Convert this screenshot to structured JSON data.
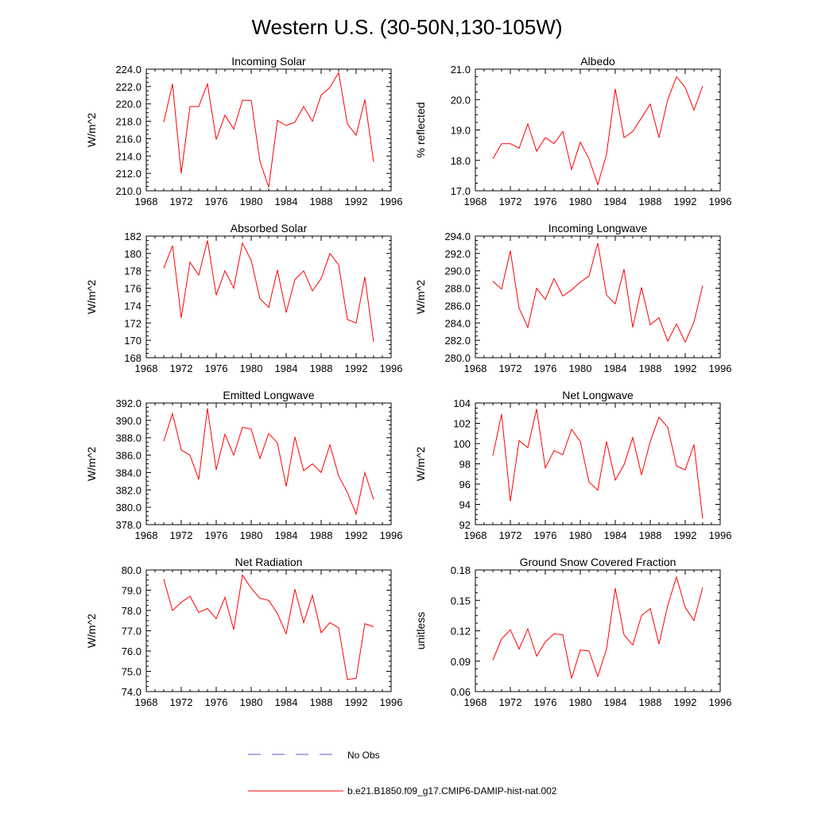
{
  "figure": {
    "title": "Western U.S. (30-50N,130-105W)"
  },
  "colors": {
    "model": "#ff0000",
    "obs": "#5a5ad0",
    "axis": "#000000",
    "background": "#ffffff"
  },
  "legend": {
    "obs_label": "No Obs",
    "model_label": "b.e21.B1850.f09_g17.CMIP6-DAMIP-hist-nat.002",
    "placement": "bottom-center"
  },
  "chart_data": [
    {
      "type": "line",
      "title": "Incoming Solar",
      "xlabel": "",
      "ylabel": "W/m^2",
      "xlim": [
        1968,
        1996
      ],
      "ylim": [
        210,
        224
      ],
      "xticks": [
        1968,
        1972,
        1976,
        1980,
        1984,
        1988,
        1992,
        1996
      ],
      "yticks": [
        "210.0",
        "212.0",
        "214.0",
        "216.0",
        "218.0",
        "220.0",
        "222.0",
        "224.0"
      ],
      "grid": false,
      "x": [
        1970,
        1971,
        1972,
        1973,
        1974,
        1975,
        1976,
        1977,
        1978,
        1979,
        1980,
        1981,
        1982,
        1983,
        1984,
        1985,
        1986,
        1987,
        1988,
        1989,
        1990,
        1991,
        1992,
        1993,
        1994
      ],
      "series": [
        {
          "values": [
            217.9,
            222.3,
            212.0,
            219.7,
            219.7,
            222.3,
            215.9,
            218.7,
            217.1,
            220.4,
            220.4,
            213.4,
            210.4,
            218.1,
            217.5,
            217.9,
            219.7,
            218.0,
            221.0,
            221.9,
            223.6,
            217.7,
            216.4,
            220.5,
            213.3
          ]
        }
      ]
    },
    {
      "type": "line",
      "title": "Albedo",
      "xlabel": "",
      "ylabel": "% reflected",
      "xlim": [
        1968,
        1996
      ],
      "ylim": [
        17,
        21
      ],
      "xticks": [
        1968,
        1972,
        1976,
        1980,
        1984,
        1988,
        1992,
        1996
      ],
      "yticks": [
        "17.0",
        "18.0",
        "19.0",
        "20.0",
        "21.0"
      ],
      "grid": false,
      "x": [
        1970,
        1971,
        1972,
        1973,
        1974,
        1975,
        1976,
        1977,
        1978,
        1979,
        1980,
        1981,
        1982,
        1983,
        1984,
        1985,
        1986,
        1987,
        1988,
        1989,
        1990,
        1991,
        1992,
        1993,
        1994
      ],
      "series": [
        {
          "values": [
            18.05,
            18.55,
            18.55,
            18.4,
            19.2,
            18.3,
            18.75,
            18.55,
            18.95,
            17.7,
            18.6,
            18.05,
            17.2,
            18.2,
            20.35,
            18.75,
            18.95,
            19.4,
            19.85,
            18.75,
            20.0,
            20.75,
            20.4,
            19.65,
            20.45
          ]
        }
      ]
    },
    {
      "type": "line",
      "title": "Absorbed Solar",
      "xlabel": "",
      "ylabel": "W/m^2",
      "xlim": [
        1968,
        1996
      ],
      "ylim": [
        168,
        182
      ],
      "xticks": [
        1968,
        1972,
        1976,
        1980,
        1984,
        1988,
        1992,
        1996
      ],
      "yticks": [
        "168",
        "170",
        "172",
        "174",
        "176",
        "178",
        "180",
        "182"
      ],
      "grid": false,
      "x": [
        1970,
        1971,
        1972,
        1973,
        1974,
        1975,
        1976,
        1977,
        1978,
        1979,
        1980,
        1981,
        1982,
        1983,
        1984,
        1985,
        1986,
        1987,
        1988,
        1989,
        1990,
        1991,
        1992,
        1993,
        1994
      ],
      "series": [
        {
          "values": [
            178.3,
            180.9,
            172.6,
            179.0,
            177.5,
            181.5,
            175.2,
            178.0,
            176.0,
            181.2,
            179.2,
            174.8,
            173.8,
            178.1,
            173.2,
            177.0,
            178.0,
            175.7,
            177.1,
            180.0,
            178.7,
            172.4,
            172.0,
            177.3,
            169.8
          ]
        }
      ]
    },
    {
      "type": "line",
      "title": "Incoming Longwave",
      "xlabel": "",
      "ylabel": "W/m^2",
      "xlim": [
        1968,
        1996
      ],
      "ylim": [
        280,
        294
      ],
      "xticks": [
        1968,
        1972,
        1976,
        1980,
        1984,
        1988,
        1992,
        1996
      ],
      "yticks": [
        "280.0",
        "282.0",
        "284.0",
        "286.0",
        "288.0",
        "290.0",
        "292.0",
        "294.0"
      ],
      "grid": false,
      "x": [
        1970,
        1971,
        1972,
        1973,
        1974,
        1975,
        1976,
        1977,
        1978,
        1979,
        1980,
        1981,
        1982,
        1983,
        1984,
        1985,
        1986,
        1987,
        1988,
        1989,
        1990,
        1991,
        1992,
        1993,
        1994
      ],
      "series": [
        {
          "values": [
            288.8,
            287.9,
            292.3,
            285.7,
            283.5,
            288.0,
            286.7,
            289.1,
            287.1,
            287.8,
            288.7,
            289.4,
            293.2,
            287.2,
            286.2,
            290.2,
            283.5,
            288.1,
            283.8,
            284.6,
            281.9,
            283.9,
            281.8,
            284.1,
            288.3
          ]
        }
      ]
    },
    {
      "type": "line",
      "title": "Emitted Longwave",
      "xlabel": "",
      "ylabel": "W/m^2",
      "xlim": [
        1968,
        1996
      ],
      "ylim": [
        378,
        392
      ],
      "xticks": [
        1968,
        1972,
        1976,
        1980,
        1984,
        1988,
        1992,
        1996
      ],
      "yticks": [
        "378.0",
        "380.0",
        "382.0",
        "384.0",
        "386.0",
        "388.0",
        "390.0",
        "392.0"
      ],
      "grid": false,
      "x": [
        1970,
        1971,
        1972,
        1973,
        1974,
        1975,
        1976,
        1977,
        1978,
        1979,
        1980,
        1981,
        1982,
        1983,
        1984,
        1985,
        1986,
        1987,
        1988,
        1989,
        1990,
        1991,
        1992,
        1993,
        1994
      ],
      "series": [
        {
          "values": [
            387.6,
            390.8,
            386.6,
            386.0,
            383.2,
            391.4,
            384.3,
            388.4,
            386.0,
            389.2,
            389.0,
            385.6,
            388.5,
            387.4,
            382.4,
            388.1,
            384.2,
            385.0,
            384.0,
            387.2,
            383.6,
            381.7,
            379.2,
            384.0,
            380.9
          ]
        }
      ]
    },
    {
      "type": "line",
      "title": "Net Longwave",
      "xlabel": "",
      "ylabel": "W/m^2",
      "xlim": [
        1968,
        1996
      ],
      "ylim": [
        92,
        104
      ],
      "xticks": [
        1968,
        1972,
        1976,
        1980,
        1984,
        1988,
        1992,
        1996
      ],
      "yticks": [
        "92",
        "94",
        "96",
        "98",
        "100",
        "102",
        "104"
      ],
      "grid": false,
      "x": [
        1970,
        1971,
        1972,
        1973,
        1974,
        1975,
        1976,
        1977,
        1978,
        1979,
        1980,
        1981,
        1982,
        1983,
        1984,
        1985,
        1986,
        1987,
        1988,
        1989,
        1990,
        1991,
        1992,
        1993,
        1994
      ],
      "series": [
        {
          "values": [
            98.8,
            102.9,
            94.3,
            100.3,
            99.6,
            103.4,
            97.6,
            99.3,
            98.9,
            101.4,
            100.2,
            96.2,
            95.4,
            100.2,
            96.4,
            97.9,
            100.6,
            96.9,
            100.2,
            102.6,
            101.6,
            97.8,
            97.4,
            99.9,
            92.6
          ]
        }
      ]
    },
    {
      "type": "line",
      "title": "Net Radiation",
      "xlabel": "",
      "ylabel": "W/m^2",
      "xlim": [
        1968,
        1996
      ],
      "ylim": [
        74,
        80
      ],
      "xticks": [
        1968,
        1972,
        1976,
        1980,
        1984,
        1988,
        1992,
        1996
      ],
      "yticks": [
        "74.0",
        "75.0",
        "76.0",
        "77.0",
        "78.0",
        "79.0",
        "80.0"
      ],
      "grid": false,
      "x": [
        1970,
        1971,
        1972,
        1973,
        1974,
        1975,
        1976,
        1977,
        1978,
        1979,
        1980,
        1981,
        1982,
        1983,
        1984,
        1985,
        1986,
        1987,
        1988,
        1989,
        1990,
        1991,
        1992,
        1993,
        1994
      ],
      "series": [
        {
          "values": [
            79.55,
            78.0,
            78.4,
            78.7,
            77.9,
            78.1,
            77.6,
            78.65,
            77.05,
            79.75,
            79.1,
            78.6,
            78.5,
            77.85,
            76.85,
            79.05,
            77.4,
            78.75,
            76.9,
            77.4,
            77.15,
            74.6,
            74.65,
            77.35,
            77.2
          ]
        }
      ]
    },
    {
      "type": "line",
      "title": "Ground Snow Covered Fraction",
      "xlabel": "",
      "ylabel": "unitless",
      "xlim": [
        1968,
        1996
      ],
      "ylim": [
        0.06,
        0.18
      ],
      "xticks": [
        1968,
        1972,
        1976,
        1980,
        1984,
        1988,
        1992,
        1996
      ],
      "yticks": [
        "0.06",
        "0.09",
        "0.12",
        "0.15",
        "0.18"
      ],
      "grid": false,
      "x": [
        1970,
        1971,
        1972,
        1973,
        1974,
        1975,
        1976,
        1977,
        1978,
        1979,
        1980,
        1981,
        1982,
        1983,
        1984,
        1985,
        1986,
        1987,
        1988,
        1989,
        1990,
        1991,
        1992,
        1993,
        1994
      ],
      "series": [
        {
          "values": [
            0.091,
            0.112,
            0.121,
            0.102,
            0.122,
            0.095,
            0.109,
            0.117,
            0.116,
            0.073,
            0.101,
            0.1,
            0.075,
            0.102,
            0.162,
            0.116,
            0.106,
            0.135,
            0.142,
            0.107,
            0.145,
            0.173,
            0.143,
            0.13,
            0.163
          ]
        }
      ]
    }
  ]
}
